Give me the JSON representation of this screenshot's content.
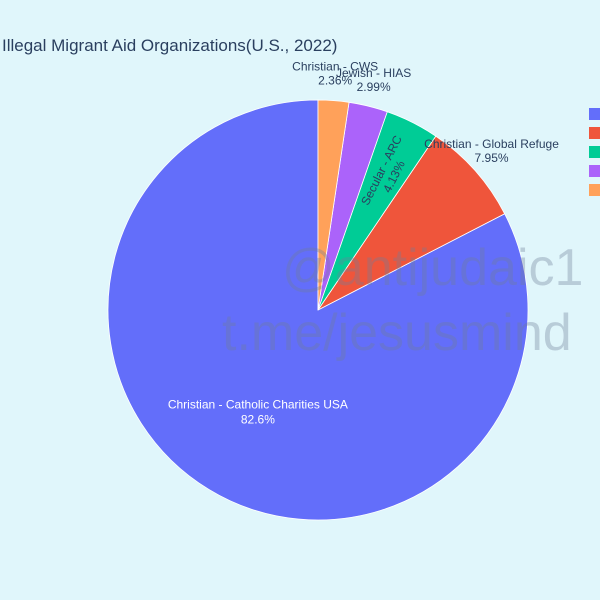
{
  "chart_data": {
    "type": "pie",
    "title": "Illegal Migrant Aid Organizations(U.S., 2022)",
    "slices": [
      {
        "label": "Christian - Catholic Charities USA",
        "value": 82.6,
        "display": "82.6%",
        "color": "#636efa",
        "label_position": "inside"
      },
      {
        "label": "Christian - Global Refuge",
        "value": 7.95,
        "display": "7.95%",
        "color": "#ef553b",
        "label_position": "outside"
      },
      {
        "label": "Secular - ARC",
        "value": 4.13,
        "display": "4.13%",
        "color": "#00cc96",
        "label_position": "inside-rotated"
      },
      {
        "label": "Jewish - HIAS",
        "value": 2.99,
        "display": "2.99%",
        "color": "#ab63fa",
        "label_position": "outside"
      },
      {
        "label": "Christian - CWS",
        "value": 2.36,
        "display": "2.36%",
        "color": "#ffa15a",
        "label_position": "outside"
      }
    ],
    "direction": "counterclockwise",
    "start": "12 o'clock",
    "legend": {
      "placement": "top-right",
      "labels_visible": false
    }
  },
  "watermark": {
    "line1": "@antijudaic1",
    "line2": "t.me/jesusmind"
  }
}
